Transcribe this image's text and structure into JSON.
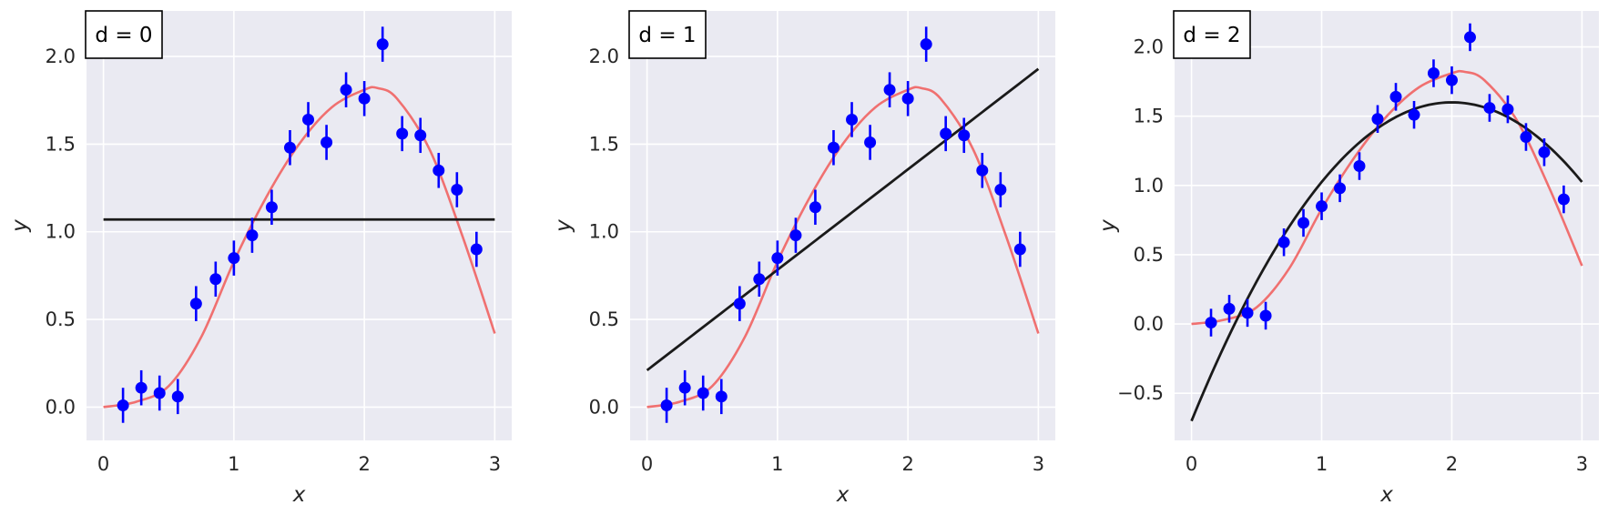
{
  "chart_data": [
    {
      "type": "scatter",
      "badge": "d = 0",
      "xlabel": "x",
      "ylabel": "y",
      "xlim": [
        -0.13,
        3.13
      ],
      "ylim": [
        -0.19,
        2.26
      ],
      "xticks": [
        0,
        1,
        2,
        3
      ],
      "yticks": [
        0.0,
        0.5,
        1.0,
        1.5,
        2.0
      ],
      "grid": true,
      "colors": {
        "points": "#0000ff",
        "true_curve": "#f07070",
        "fit": "#1a1a1a",
        "background": "#eaeaf2"
      },
      "points": {
        "x": [
          0.15,
          0.29,
          0.43,
          0.57,
          0.71,
          0.86,
          1.0,
          1.14,
          1.29,
          1.43,
          1.57,
          1.71,
          1.86,
          2.0,
          2.14,
          2.29,
          2.43,
          2.57,
          2.71,
          2.86
        ],
        "y": [
          0.01,
          0.11,
          0.08,
          0.06,
          0.59,
          0.73,
          0.85,
          0.98,
          1.14,
          1.48,
          1.64,
          1.51,
          1.81,
          1.76,
          2.07,
          1.56,
          1.55,
          1.35,
          1.24,
          0.9
        ],
        "yerr": 0.1
      },
      "true_curve": {
        "type": "sampled",
        "x": [
          0,
          0.25,
          0.5,
          0.75,
          1.0,
          1.25,
          1.5,
          1.75,
          2.0,
          2.1,
          2.25,
          2.5,
          2.75,
          3.0
        ],
        "y": [
          0.0,
          0.03,
          0.12,
          0.4,
          0.83,
          1.2,
          1.5,
          1.71,
          1.81,
          1.82,
          1.76,
          1.47,
          0.98,
          0.42
        ]
      },
      "fit_curve": {
        "degree": 0,
        "coefficients": [
          1.07
        ]
      }
    },
    {
      "type": "scatter",
      "badge": "d = 1",
      "xlabel": "x",
      "ylabel": "y",
      "xlim": [
        -0.13,
        3.13
      ],
      "ylim": [
        -0.19,
        2.26
      ],
      "xticks": [
        0,
        1,
        2,
        3
      ],
      "yticks": [
        0.0,
        0.5,
        1.0,
        1.5,
        2.0
      ],
      "grid": true,
      "colors": {
        "points": "#0000ff",
        "true_curve": "#f07070",
        "fit": "#1a1a1a",
        "background": "#eaeaf2"
      },
      "points": {
        "x": [
          0.15,
          0.29,
          0.43,
          0.57,
          0.71,
          0.86,
          1.0,
          1.14,
          1.29,
          1.43,
          1.57,
          1.71,
          1.86,
          2.0,
          2.14,
          2.29,
          2.43,
          2.57,
          2.71,
          2.86
        ],
        "y": [
          0.01,
          0.11,
          0.08,
          0.06,
          0.59,
          0.73,
          0.85,
          0.98,
          1.14,
          1.48,
          1.64,
          1.51,
          1.81,
          1.76,
          2.07,
          1.56,
          1.55,
          1.35,
          1.24,
          0.9
        ],
        "yerr": 0.1
      },
      "true_curve": {
        "type": "sampled",
        "x": [
          0,
          0.25,
          0.5,
          0.75,
          1.0,
          1.25,
          1.5,
          1.75,
          2.0,
          2.1,
          2.25,
          2.5,
          2.75,
          3.0
        ],
        "y": [
          0.0,
          0.03,
          0.12,
          0.4,
          0.83,
          1.2,
          1.5,
          1.71,
          1.81,
          1.82,
          1.76,
          1.47,
          0.98,
          0.42
        ]
      },
      "fit_curve": {
        "degree": 1,
        "coefficients": [
          0.21,
          0.573
        ]
      }
    },
    {
      "type": "scatter",
      "badge": "d = 2",
      "xlabel": "x",
      "ylabel": "y",
      "xlim": [
        -0.13,
        3.13
      ],
      "ylim": [
        -0.84,
        2.26
      ],
      "xticks": [
        0,
        1,
        2,
        3
      ],
      "yticks": [
        -0.5,
        0.0,
        0.5,
        1.0,
        1.5,
        2.0
      ],
      "grid": true,
      "colors": {
        "points": "#0000ff",
        "true_curve": "#f07070",
        "fit": "#1a1a1a",
        "background": "#eaeaf2"
      },
      "points": {
        "x": [
          0.15,
          0.29,
          0.43,
          0.57,
          0.71,
          0.86,
          1.0,
          1.14,
          1.29,
          1.43,
          1.57,
          1.71,
          1.86,
          2.0,
          2.14,
          2.29,
          2.43,
          2.57,
          2.71,
          2.86
        ],
        "y": [
          0.01,
          0.11,
          0.08,
          0.06,
          0.59,
          0.73,
          0.85,
          0.98,
          1.14,
          1.48,
          1.64,
          1.51,
          1.81,
          1.76,
          2.07,
          1.56,
          1.55,
          1.35,
          1.24,
          0.9
        ],
        "yerr": 0.1
      },
      "true_curve": {
        "type": "sampled",
        "x": [
          0,
          0.25,
          0.5,
          0.75,
          1.0,
          1.25,
          1.5,
          1.75,
          2.0,
          2.1,
          2.25,
          2.5,
          2.75,
          3.0
        ],
        "y": [
          0.0,
          0.03,
          0.12,
          0.4,
          0.83,
          1.2,
          1.5,
          1.71,
          1.81,
          1.82,
          1.76,
          1.47,
          0.98,
          0.42
        ]
      },
      "fit_curve": {
        "degree": 2,
        "coefficients": [
          -0.7,
          2.3,
          -0.575
        ]
      }
    }
  ]
}
